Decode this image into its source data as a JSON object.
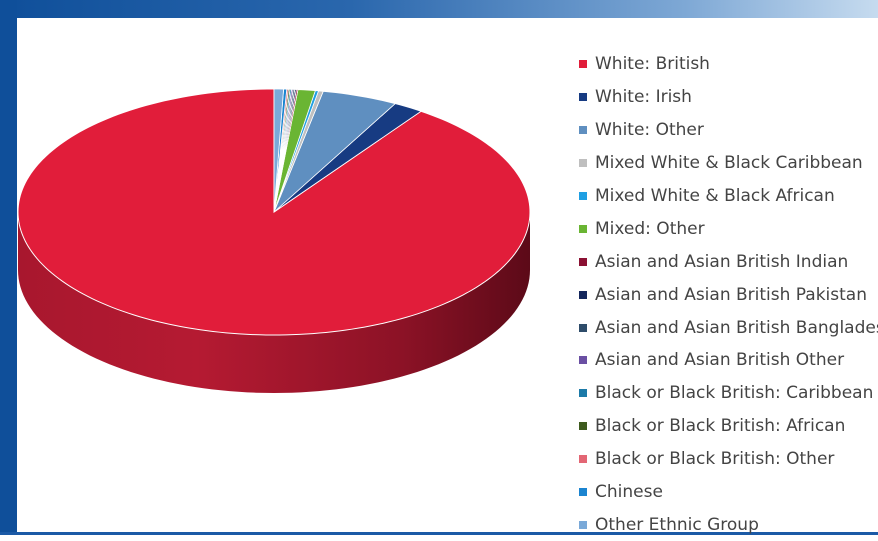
{
  "chart_data": {
    "type": "pie",
    "title": "",
    "categories": [
      "White: British",
      "White: Irish",
      "White: Other",
      "Mixed White & Black Caribbean",
      "Mixed White & Black African",
      "Mixed: Other",
      "Asian and Asian British Indian",
      "Asian and Asian British Pakistan",
      "Asian and Asian British Bangladesh",
      "Asian and Asian British Other",
      "Black or Black British: Caribbean",
      "Black or Black British: African",
      "Black or Black British: Other",
      "Chinese",
      "Other Ethnic Group"
    ],
    "values": [
      90.9,
      1.9,
      4.8,
      0.3,
      0.2,
      1.1,
      0.1,
      0.1,
      0.1,
      0.1,
      0.1,
      0.1,
      0.1,
      0.2,
      0.6
    ],
    "colors": [
      "#e11d3a",
      "#173b82",
      "#5f8fc0",
      "#bfbfbf",
      "#1f9fe3",
      "#6ab533",
      "#8b1133",
      "#14275c",
      "#2e4c6a",
      "#6a4fa3",
      "#1c7aa8",
      "#3e5b1e",
      "#e36674",
      "#1b84d0",
      "#7aa9d8"
    ],
    "legend_position": "right"
  }
}
